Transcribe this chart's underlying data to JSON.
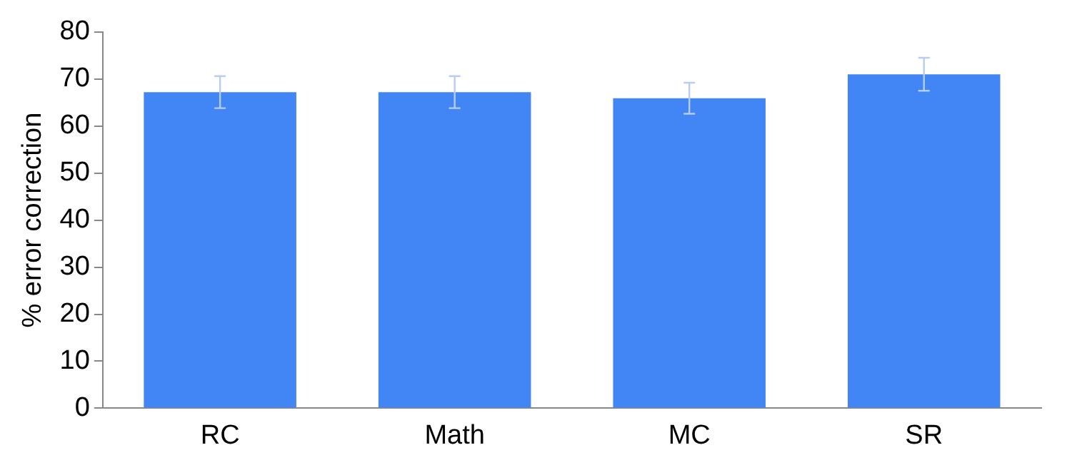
{
  "chart_data": {
    "type": "bar",
    "ylabel": "% error correction",
    "categories": [
      "RC",
      "Math",
      "MC",
      "SR"
    ],
    "values": [
      67.2,
      67.2,
      65.9,
      71.0
    ],
    "errors": [
      3.4,
      3.4,
      3.3,
      3.5
    ],
    "color": "#4285f4",
    "ylim": [
      0,
      80
    ],
    "yticks": [
      0,
      10,
      20,
      30,
      40,
      50,
      60,
      70,
      80
    ],
    "grid": false,
    "legend": false
  }
}
